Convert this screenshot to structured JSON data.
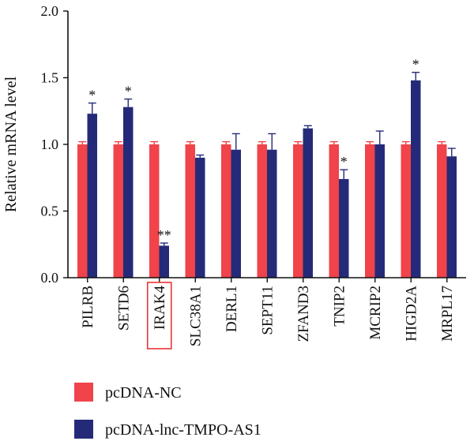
{
  "chart_data": {
    "type": "bar",
    "ylabel": "Relative mRNA level",
    "ylim": [
      0,
      2.0
    ],
    "yticks": [
      "0.0",
      "0.5",
      "1.0",
      "1.5",
      "2.0"
    ],
    "categories": [
      "PILRB",
      "SETD6",
      "IRAK4",
      "SLC38A1",
      "DERL1",
      "SEPT11",
      "ZFAND3",
      "TNIP2",
      "MCRIP2",
      "HIGD2A",
      "MRPL17"
    ],
    "highlighted_category": "IRAK4",
    "series": [
      {
        "name": "pcDNA-NC",
        "color": "#f0434a",
        "values": [
          1.0,
          1.0,
          1.0,
          1.0,
          1.0,
          1.0,
          1.0,
          1.0,
          1.0,
          1.0,
          1.0
        ],
        "errors": [
          0.02,
          0.02,
          0.02,
          0.02,
          0.02,
          0.02,
          0.02,
          0.02,
          0.02,
          0.02,
          0.02
        ]
      },
      {
        "name": "pcDNA-lnc-TMPO-AS1",
        "color": "#252a78",
        "values": [
          1.23,
          1.28,
          0.24,
          0.9,
          0.96,
          0.96,
          1.12,
          0.74,
          1.0,
          1.48,
          0.91
        ],
        "errors": [
          0.08,
          0.06,
          0.02,
          0.02,
          0.12,
          0.12,
          0.02,
          0.07,
          0.1,
          0.06,
          0.06
        ]
      }
    ],
    "significance": [
      "*",
      "*",
      "**",
      "",
      "",
      "",
      "",
      "*",
      "",
      "*",
      ""
    ],
    "legend_position": "bottom-left"
  }
}
